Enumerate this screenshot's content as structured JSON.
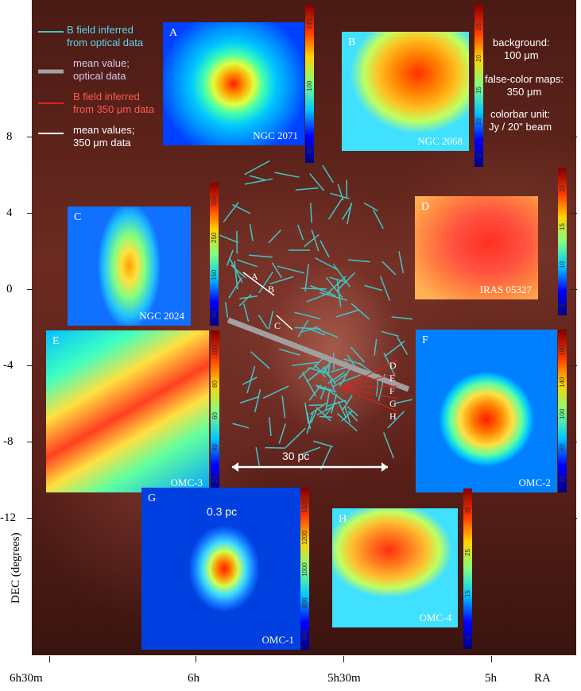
{
  "legend": {
    "optical_b": "B field inferred\nfrom optical data",
    "optical_mean": "mean value;\noptical data",
    "submm_b": "B field inferred\nfrom 350 μm data",
    "submm_mean": "mean values;\n350 μm data"
  },
  "info": {
    "background": "background:\n100 μm",
    "falsecolor": "false-color maps:\n350 μm",
    "colorbar_unit": "colorbar unit:\nJy / 20\" beam"
  },
  "maps": [
    {
      "letter": "A",
      "name": "NGC 2071",
      "ticks": [
        "140",
        "100",
        "60"
      ]
    },
    {
      "letter": "B",
      "name": "NGC 2068",
      "ticks": [
        "25",
        "20",
        "15",
        "10",
        "5"
      ]
    },
    {
      "letter": "C",
      "name": "NGC 2024",
      "ticks": [
        "350",
        "250",
        "150",
        "50"
      ]
    },
    {
      "letter": "D",
      "name": "IRAS 05327",
      "ticks": [
        "20",
        "15",
        "10",
        "5"
      ]
    },
    {
      "letter": "E",
      "name": "OMC-3",
      "ticks": [
        "100",
        "80",
        "60",
        "40",
        "20"
      ]
    },
    {
      "letter": "F",
      "name": "OMC-2",
      "ticks": [
        "180",
        "140",
        "100",
        "60",
        "20"
      ]
    },
    {
      "letter": "G",
      "name": "OMC-1",
      "ticks": [
        "1800",
        "1200",
        "1000",
        "800",
        "600"
      ]
    },
    {
      "letter": "H",
      "name": "OMC-4",
      "ticks": [
        "35",
        "25",
        "15",
        "5"
      ]
    }
  ],
  "center_labels": [
    "A",
    "B",
    "C",
    "D",
    "E",
    "F",
    "G",
    "H"
  ],
  "scale_30pc": "30 pc",
  "scale_03pc": "0.3 pc",
  "axes": {
    "y_label": "DEC (degrees)",
    "y_ticks": [
      "8",
      "4",
      "0",
      "-4",
      "-8",
      "-12"
    ],
    "x_label": "RA",
    "x_ticks": [
      "6h30m",
      "6h",
      "5h30m",
      "5h"
    ]
  },
  "colors": {
    "optical_vector": "#3ec8c8",
    "optical_mean": "#a0a0a0",
    "submm_vector": "#e02020",
    "submm_mean": "#ffffff"
  }
}
